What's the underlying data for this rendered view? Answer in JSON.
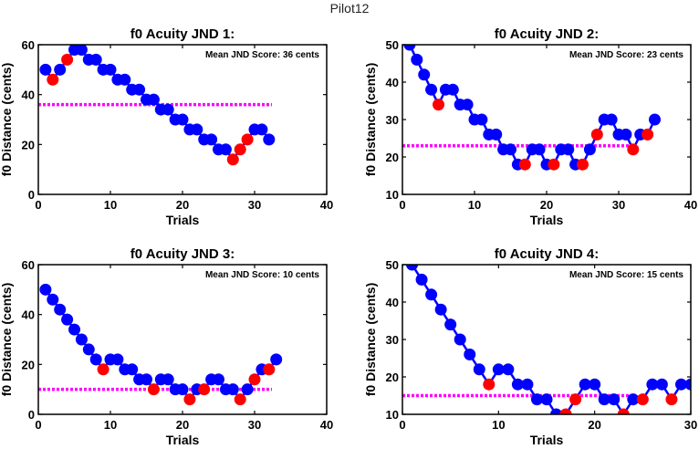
{
  "suptitle": "Pilot12",
  "chart_data": [
    {
      "type": "line",
      "title": "f0 Acuity JND 1:",
      "annotation": "Mean JND Score: 36 cents",
      "xlabel": "Trials",
      "ylabel": "f0 Distance (cents)",
      "xlim": [
        0,
        40
      ],
      "ylim": [
        0,
        60
      ],
      "xticks": [
        0,
        10,
        20,
        30,
        40
      ],
      "yticks": [
        0,
        20,
        40,
        60
      ],
      "mean_value": 36,
      "x": [
        1,
        2,
        3,
        4,
        5,
        6,
        7,
        8,
        9,
        10,
        11,
        12,
        13,
        14,
        15,
        16,
        17,
        18,
        19,
        20,
        21,
        22,
        23,
        24,
        25,
        26,
        27,
        28,
        29,
        30,
        31,
        32
      ],
      "y": [
        50,
        46,
        50,
        54,
        58,
        58,
        54,
        54,
        50,
        50,
        46,
        46,
        42,
        42,
        38,
        38,
        34,
        34,
        30,
        30,
        26,
        26,
        22,
        22,
        18,
        18,
        14,
        18,
        22,
        26,
        26,
        22
      ],
      "reversal_trials": [
        2,
        4,
        27,
        28,
        29
      ],
      "colors": {
        "line": "#0000ff",
        "point": "#0000ff",
        "reversal": "#ff0000",
        "mean": "#ff00ff"
      }
    },
    {
      "type": "line",
      "title": "f0 Acuity JND 2:",
      "annotation": "Mean JND Score: 23 cents",
      "xlabel": "Trials",
      "ylabel": "f0 Distance (cents)",
      "xlim": [
        0,
        40
      ],
      "ylim": [
        10,
        50
      ],
      "xticks": [
        0,
        10,
        20,
        30,
        40
      ],
      "yticks": [
        10,
        20,
        30,
        40,
        50
      ],
      "mean_value": 23,
      "x": [
        1,
        2,
        3,
        4,
        5,
        6,
        7,
        8,
        9,
        10,
        11,
        12,
        13,
        14,
        15,
        16,
        17,
        18,
        19,
        20,
        21,
        22,
        23,
        24,
        25,
        26,
        27,
        28,
        29,
        30,
        31,
        32,
        33,
        34,
        35
      ],
      "y": [
        50,
        46,
        42,
        38,
        34,
        38,
        38,
        34,
        34,
        30,
        30,
        26,
        26,
        22,
        22,
        18,
        18,
        22,
        22,
        18,
        18,
        22,
        22,
        18,
        18,
        22,
        26,
        30,
        30,
        26,
        26,
        22,
        26,
        26,
        30
      ],
      "reversal_trials": [
        5,
        17,
        21,
        25,
        27,
        32,
        34
      ],
      "colors": {
        "line": "#0000ff",
        "point": "#0000ff",
        "reversal": "#ff0000",
        "mean": "#ff00ff"
      }
    },
    {
      "type": "line",
      "title": "f0 Acuity JND 3:",
      "annotation": "Mean JND Score: 10 cents",
      "xlabel": "Trials",
      "ylabel": "f0 Distance (cents)",
      "xlim": [
        0,
        40
      ],
      "ylim": [
        0,
        60
      ],
      "xticks": [
        0,
        10,
        20,
        30,
        40
      ],
      "yticks": [
        0,
        20,
        40,
        60
      ],
      "mean_value": 10,
      "x": [
        1,
        2,
        3,
        4,
        5,
        6,
        7,
        8,
        9,
        10,
        11,
        12,
        13,
        14,
        15,
        16,
        17,
        18,
        19,
        20,
        21,
        22,
        23,
        24,
        25,
        26,
        27,
        28,
        29,
        30,
        31,
        32,
        33
      ],
      "y": [
        50,
        46,
        42,
        38,
        34,
        30,
        26,
        22,
        18,
        22,
        22,
        18,
        18,
        14,
        14,
        10,
        14,
        14,
        10,
        10,
        6,
        10,
        10,
        14,
        14,
        10,
        10,
        6,
        10,
        14,
        18,
        18,
        22
      ],
      "reversal_trials": [
        9,
        16,
        21,
        23,
        28,
        30,
        32
      ],
      "colors": {
        "line": "#0000ff",
        "point": "#0000ff",
        "reversal": "#ff0000",
        "mean": "#ff00ff"
      }
    },
    {
      "type": "line",
      "title": "f0 Acuity JND 4:",
      "annotation": "Mean JND Score: 15 cents",
      "xlabel": "Trials",
      "ylabel": "f0 Distance (cents)",
      "xlim": [
        0,
        30
      ],
      "ylim": [
        10,
        50
      ],
      "xticks": [
        0,
        10,
        20,
        30
      ],
      "yticks": [
        10,
        20,
        30,
        40,
        50
      ],
      "mean_value": 15,
      "x": [
        1,
        2,
        3,
        4,
        5,
        6,
        7,
        8,
        9,
        10,
        11,
        12,
        13,
        14,
        15,
        16,
        17,
        18,
        19,
        20,
        21,
        22,
        23,
        24,
        25,
        26,
        27,
        28,
        29,
        30
      ],
      "y": [
        50,
        46,
        42,
        38,
        34,
        30,
        26,
        22,
        18,
        22,
        22,
        18,
        18,
        14,
        14,
        10,
        10,
        14,
        18,
        18,
        14,
        14,
        10,
        14,
        14,
        18,
        18,
        14,
        18,
        18
      ],
      "reversal_trials": [
        9,
        17,
        18,
        23,
        25,
        28
      ],
      "colors": {
        "line": "#0000ff",
        "point": "#0000ff",
        "reversal": "#ff0000",
        "mean": "#ff00ff"
      }
    }
  ]
}
